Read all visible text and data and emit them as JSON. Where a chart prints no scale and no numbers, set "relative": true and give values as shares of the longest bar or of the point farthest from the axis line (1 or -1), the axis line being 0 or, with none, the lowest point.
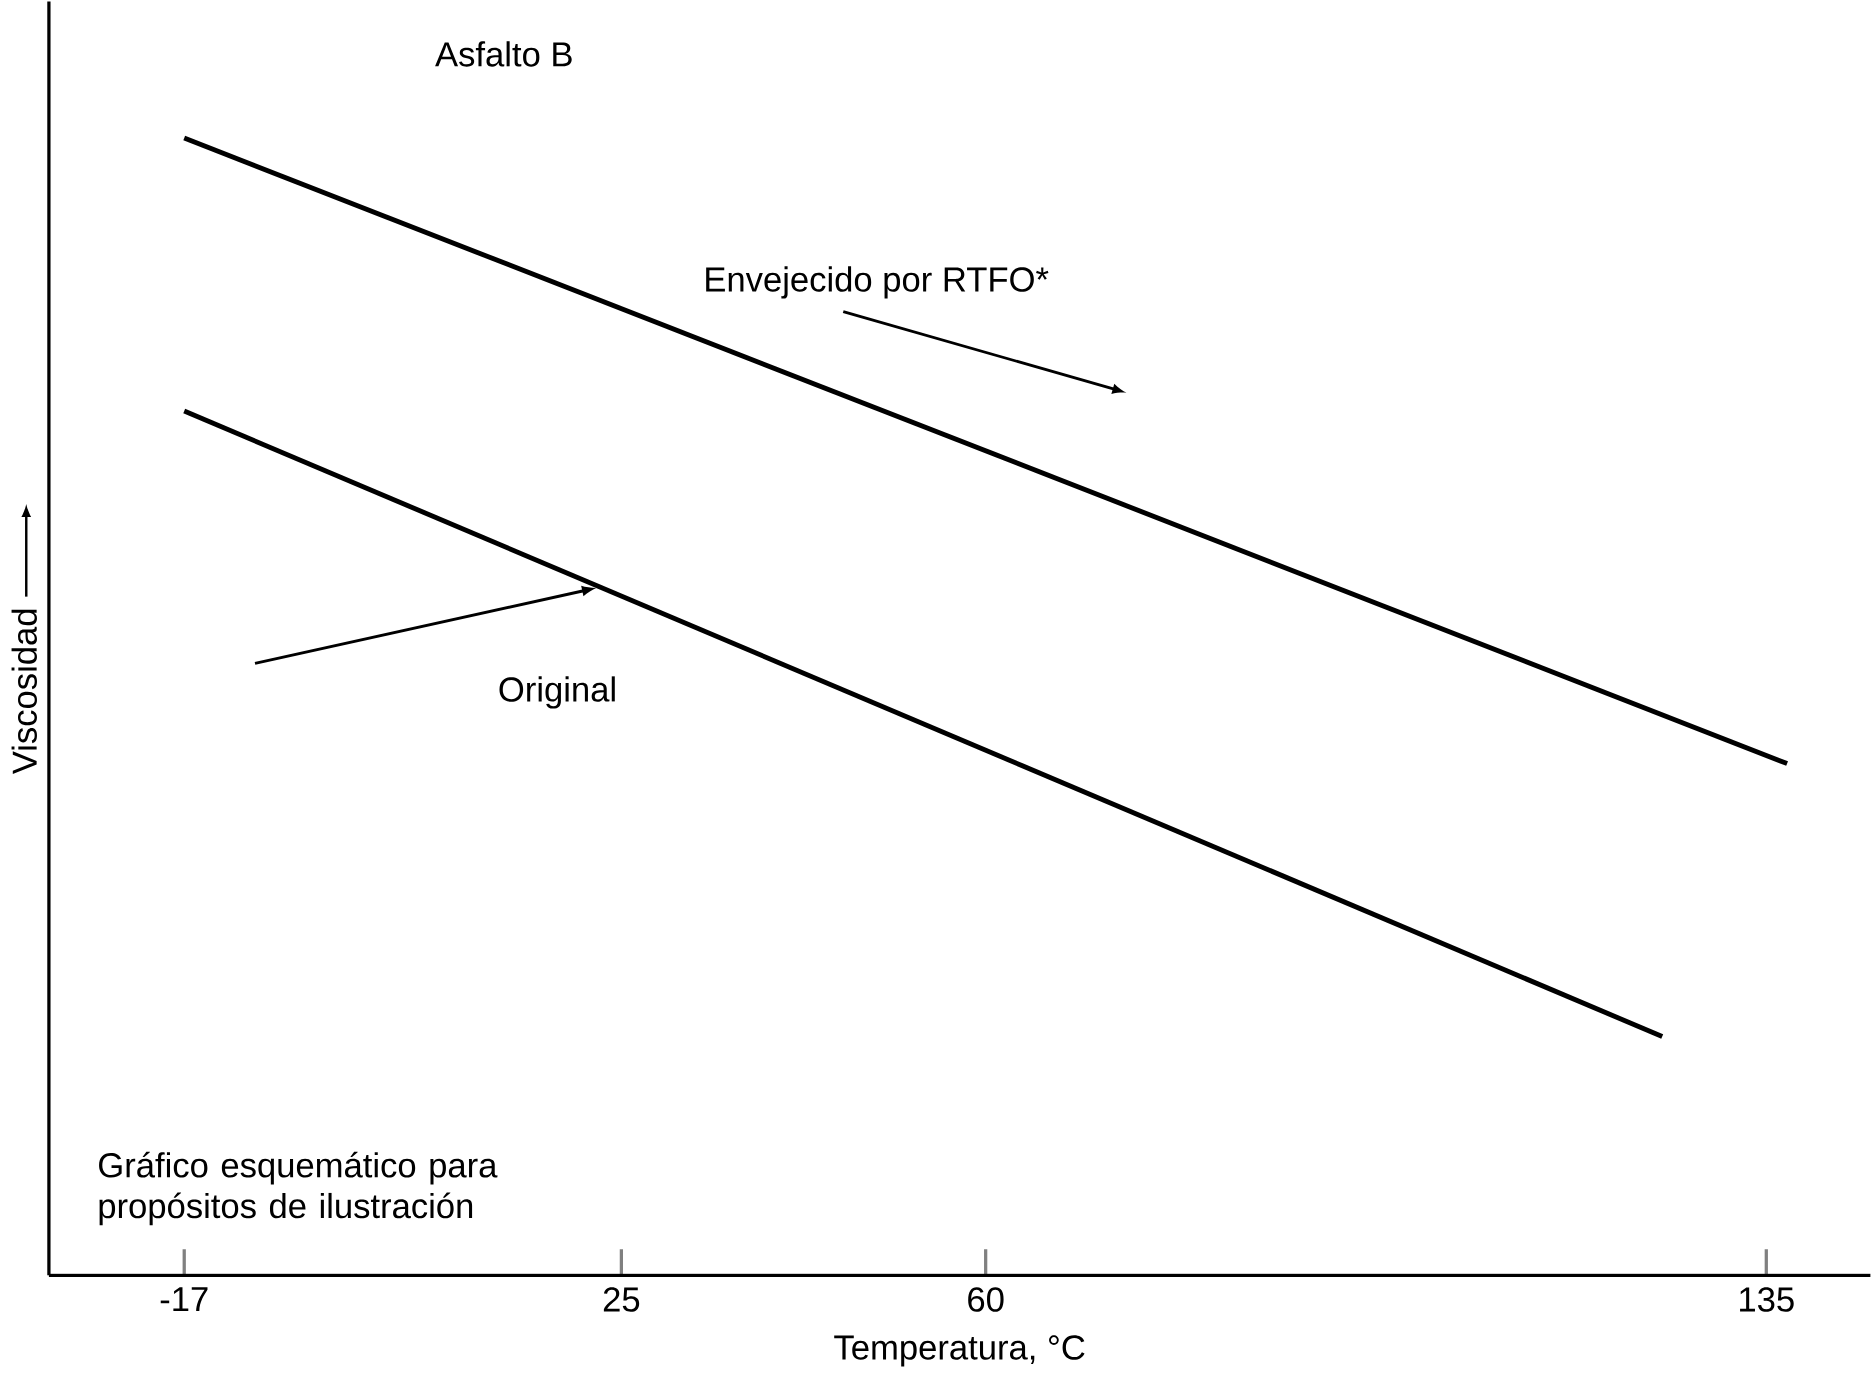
{
  "chart_data": {
    "type": "line",
    "title": "Asfalto B",
    "xlabel": "Temperatura, °C",
    "ylabel": "Viscosidad",
    "relative": true,
    "xlim": [
      -30,
      145
    ],
    "xticks": [
      -17,
      25,
      60,
      135
    ],
    "marker": "none",
    "line_style": "solid",
    "series": [
      {
        "name": "Envejecido por RTFO*",
        "color": "#000000",
        "x": [
          -17,
          137
        ],
        "values": [
          1,
          0.45
        ]
      },
      {
        "name": "Original",
        "color": "#000000",
        "x": [
          -17,
          125
        ],
        "values": [
          0.76,
          0.21
        ]
      }
    ],
    "annotations": [
      "Gráfico esquemático para propósitos de ilustración"
    ]
  }
}
